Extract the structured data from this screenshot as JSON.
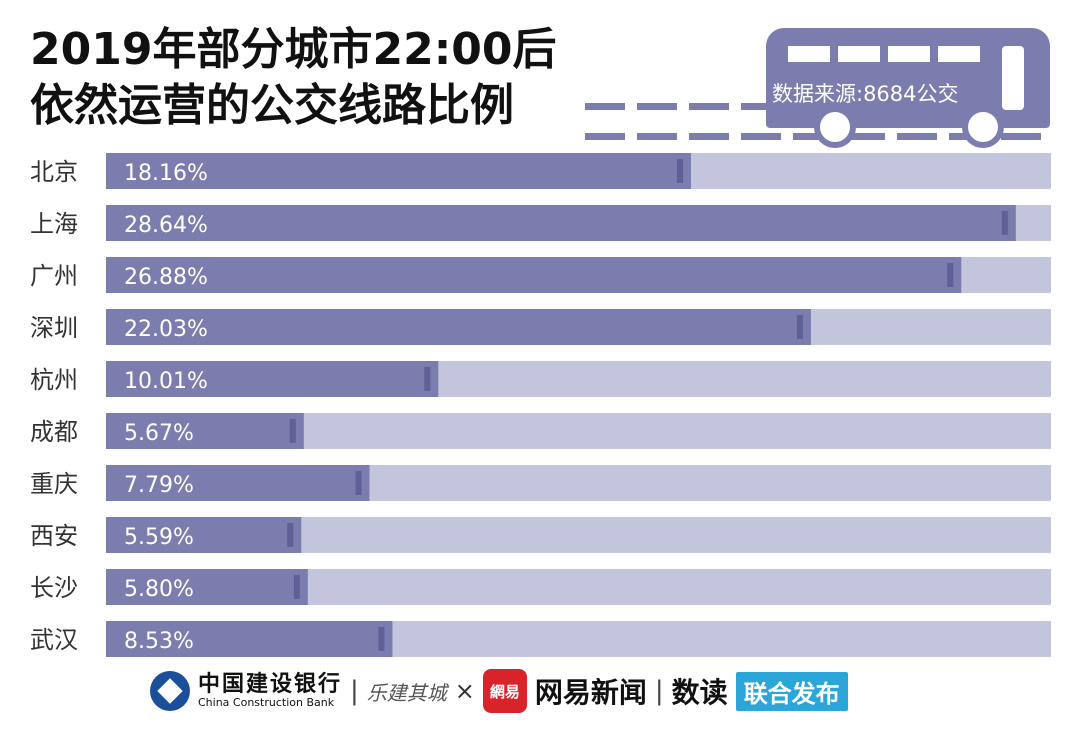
{
  "title": {
    "line1": "2019年部分城市22:00后",
    "line2": "依然运营的公交线路比例"
  },
  "source": "数据来源:8684公交",
  "chart_data": {
    "type": "bar",
    "orientation": "horizontal",
    "title": "2019年部分城市22:00后依然运营的公交线路比例",
    "categories": [
      "北京",
      "上海",
      "广州",
      "深圳",
      "杭州",
      "成都",
      "重庆",
      "西安",
      "长沙",
      "武汉"
    ],
    "values": [
      18.16,
      28.64,
      26.88,
      22.03,
      10.01,
      5.67,
      7.79,
      5.59,
      5.8,
      8.53
    ],
    "value_labels": [
      "18.16%",
      "28.64%",
      "26.88%",
      "22.03%",
      "10.01%",
      "5.67%",
      "7.79%",
      "5.59%",
      "5.80%",
      "8.53%"
    ],
    "unit": "%",
    "xlim": [
      0,
      30
    ],
    "grid": false,
    "colors": {
      "bar": "#7b7dae",
      "track": "#c3c5dc",
      "bar_end": "#5e6096"
    }
  },
  "footer": {
    "ccb_cn": "中国建设银行",
    "ccb_en": "China Construction Bank",
    "sep": "|",
    "lejian": "乐建其城",
    "times": "×",
    "netease_badge": "網易",
    "netease_news": "网易新闻",
    "shudu": "数读",
    "joint": "联合发布"
  }
}
